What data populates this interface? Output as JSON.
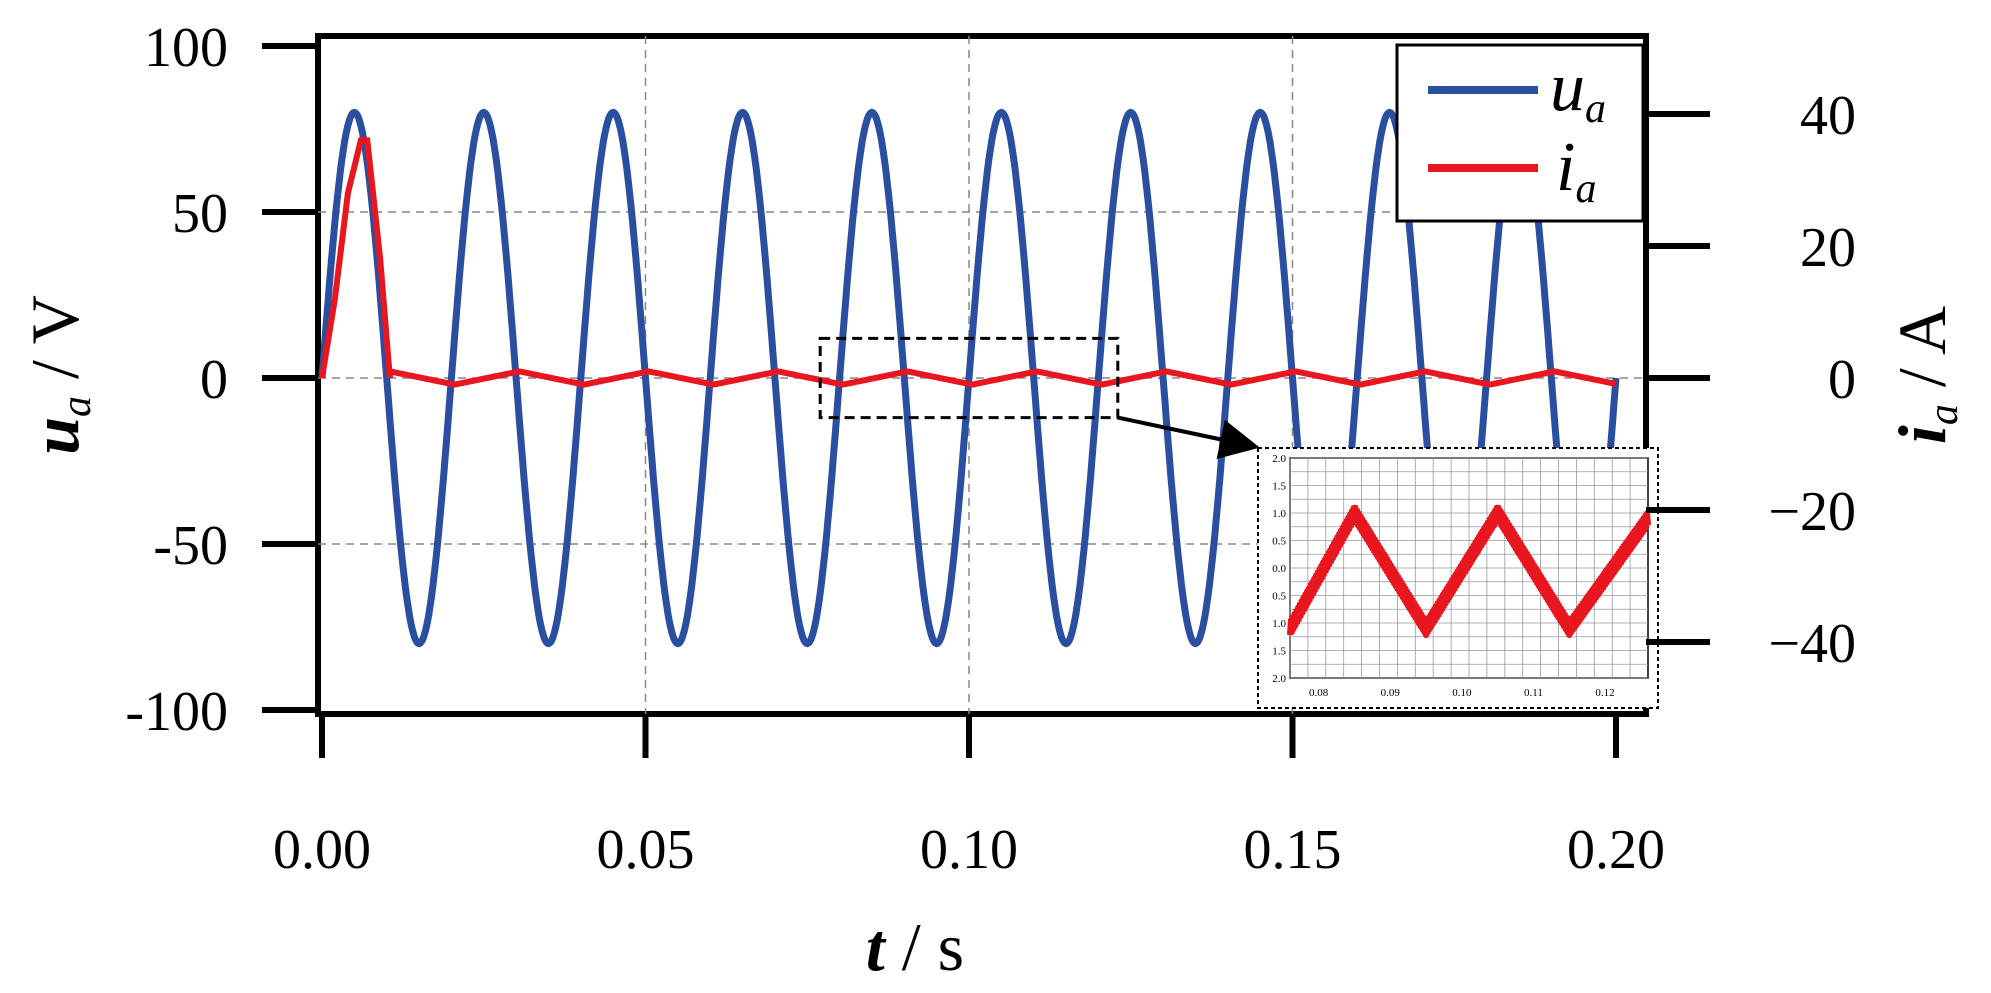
{
  "chart_data": {
    "type": "line",
    "xlabel": {
      "var": "t",
      "unit": " / s"
    },
    "ylabel_left": {
      "var": "u",
      "sub": "a",
      "unit": " / V"
    },
    "ylabel_right": {
      "var": "i",
      "sub": "a",
      "unit": " / A"
    },
    "xlim": [
      0,
      0.2
    ],
    "ylim_left": [
      -100,
      100
    ],
    "ylim_right": [
      -50,
      50
    ],
    "x_ticks": [
      "0.00",
      "0.05",
      "0.10",
      "0.15",
      "0.20"
    ],
    "x_tick_values": [
      0,
      0.05,
      0.1,
      0.15,
      0.2
    ],
    "y_left_ticks": [
      "100",
      "50",
      "0",
      "-50",
      "-100"
    ],
    "y_left_tick_values": [
      100,
      50,
      0,
      -50,
      -100
    ],
    "y_right_ticks": [
      "40",
      "20",
      "0",
      "−20",
      "−40"
    ],
    "y_right_tick_values": [
      40,
      20,
      0,
      -20,
      -40
    ],
    "grid": true,
    "legend_position": "top-right",
    "series": [
      {
        "name": "u_a",
        "legend_var": "u",
        "legend_sub": "a",
        "axis": "left",
        "color": "#2a4fa0",
        "shape": "sine",
        "amplitude": 80,
        "frequency_hz": 50,
        "x_range": [
          0,
          0.2
        ]
      },
      {
        "name": "i_a",
        "legend_var": "i",
        "legend_sub": "a",
        "axis": "right",
        "color": "#e8161e",
        "x": [
          0,
          0.002,
          0.004,
          0.006,
          0.007,
          0.009,
          0.0105,
          0.02,
          0.04,
          0.06,
          0.08,
          0.1,
          0.12,
          0.14,
          0.16,
          0.18,
          0.2
        ],
        "y": [
          0,
          12,
          28,
          36,
          36,
          18,
          0,
          0,
          0,
          0,
          0,
          0,
          0,
          0,
          0,
          0,
          0
        ],
        "steady_ripple": {
          "amplitude": 1,
          "frequency_hz": 50,
          "from": 0.0105
        }
      }
    ],
    "inset": {
      "zoom_box_x": [
        0.077,
        0.123
      ],
      "zoom_box_y_right": [
        -6,
        6
      ],
      "xlim": [
        0.076,
        0.126
      ],
      "ylim": [
        -2,
        2
      ],
      "x_ticks": [
        "0.08",
        "0.09",
        "0.10",
        "0.11",
        "0.12"
      ],
      "x_tick_values": [
        0.08,
        0.09,
        0.1,
        0.11,
        0.12
      ],
      "y_ticks": [
        "2.0",
        "1.5",
        "1.0",
        "0.5",
        "0.0",
        "0.5",
        "1.0",
        "1.5",
        "2.0"
      ],
      "y_tick_values": [
        2,
        1.5,
        1,
        0.5,
        0,
        -0.5,
        -1,
        -1.5,
        -2
      ],
      "series_points_x": [
        0.076,
        0.085,
        0.095,
        0.105,
        0.115,
        0.126
      ],
      "series_points_y": [
        -1.1,
        1.0,
        -1.1,
        1.0,
        -1.1,
        0.9
      ]
    }
  }
}
